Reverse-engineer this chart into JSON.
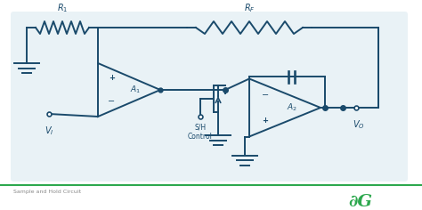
{
  "bg_color": "#ffffff",
  "panel_color": "#dce8f0",
  "line_color": "#1a4a6b",
  "line_width": 1.4,
  "footer_text": "Sample and Hold Circuit",
  "footer_color": "#888888",
  "green_color": "#2da84e",
  "figsize": [
    4.74,
    2.36
  ],
  "dpi": 100,
  "xlim": [
    0,
    47.4
  ],
  "ylim": [
    0,
    23.6
  ]
}
